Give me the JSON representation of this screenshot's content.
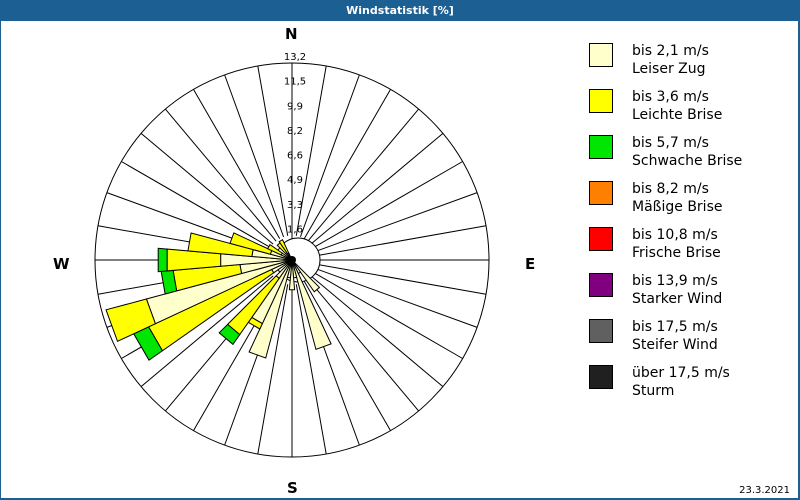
{
  "window": {
    "title": "Windstatistik [%]"
  },
  "compass": {
    "n": "N",
    "e": "E",
    "s": "S",
    "w": "W"
  },
  "legend": [
    {
      "line1": "bis 2,1 m/s",
      "line2": "Leiser Zug",
      "color": "#ffffcc"
    },
    {
      "line1": "bis 3,6 m/s",
      "line2": "Leichte Brise",
      "color": "#ffff00"
    },
    {
      "line1": "bis 5,7 m/s",
      "line2": "Schwache Brise",
      "color": "#00e600"
    },
    {
      "line1": "bis 8,2 m/s",
      "line2": "Mäßige Brise",
      "color": "#ff8000"
    },
    {
      "line1": "bis 10,8 m/s",
      "line2": "Frische Brise",
      "color": "#ff0000"
    },
    {
      "line1": "bis 13,9 m/s",
      "line2": "Starker Wind",
      "color": "#800080"
    },
    {
      "line1": "bis 17,5 m/s",
      "line2": "Steifer Wind",
      "color": "#606060"
    },
    {
      "line1": "über 17,5 m/s",
      "line2": "Sturm",
      "color": "#202020"
    }
  ],
  "date": "23.3.2021",
  "chart_data": {
    "type": "wind-rose",
    "title": "Windstatistik [%]",
    "radial_ticks": [
      "1,6",
      "3,3",
      "4,9",
      "6,6",
      "8,2",
      "9,9",
      "11,5",
      "13,2"
    ],
    "radial_max": 13.2,
    "sector_width_deg": 10,
    "series": [
      "Leiser Zug",
      "Leichte Brise",
      "Schwache Brise"
    ],
    "directions": [
      {
        "dir": 140,
        "values": [
          2.6,
          0,
          0
        ]
      },
      {
        "dir": 150,
        "values": [
          1.0,
          0,
          0
        ]
      },
      {
        "dir": 160,
        "values": [
          6.2,
          0,
          0
        ]
      },
      {
        "dir": 170,
        "values": [
          1.2,
          0,
          0
        ]
      },
      {
        "dir": 180,
        "values": [
          2.0,
          0,
          0
        ]
      },
      {
        "dir": 190,
        "values": [
          1.2,
          0,
          0
        ]
      },
      {
        "dir": 200,
        "values": [
          6.8,
          0,
          0
        ]
      },
      {
        "dir": 210,
        "values": [
          4.7,
          0.4,
          0
        ]
      },
      {
        "dir": 220,
        "values": [
          1.5,
          4.6,
          0.8
        ]
      },
      {
        "dir": 240,
        "values": [
          1.5,
          9.1,
          1.1
        ]
      },
      {
        "dir": 250,
        "values": [
          10.1,
          2.8,
          0
        ]
      },
      {
        "dir": 260,
        "values": [
          3.5,
          4.5,
          0.8
        ]
      },
      {
        "dir": 270,
        "values": [
          4.8,
          3.6,
          0.6
        ]
      },
      {
        "dir": 280,
        "values": [
          2.7,
          4.3,
          0
        ]
      },
      {
        "dir": 290,
        "values": [
          1.5,
          2.8,
          0
        ]
      },
      {
        "dir": 300,
        "values": [
          0.8,
          1.0,
          0
        ]
      },
      {
        "dir": 320,
        "values": [
          0.6,
          0.8,
          0
        ]
      },
      {
        "dir": 330,
        "values": [
          0.5,
          1.0,
          0
        ]
      }
    ]
  }
}
